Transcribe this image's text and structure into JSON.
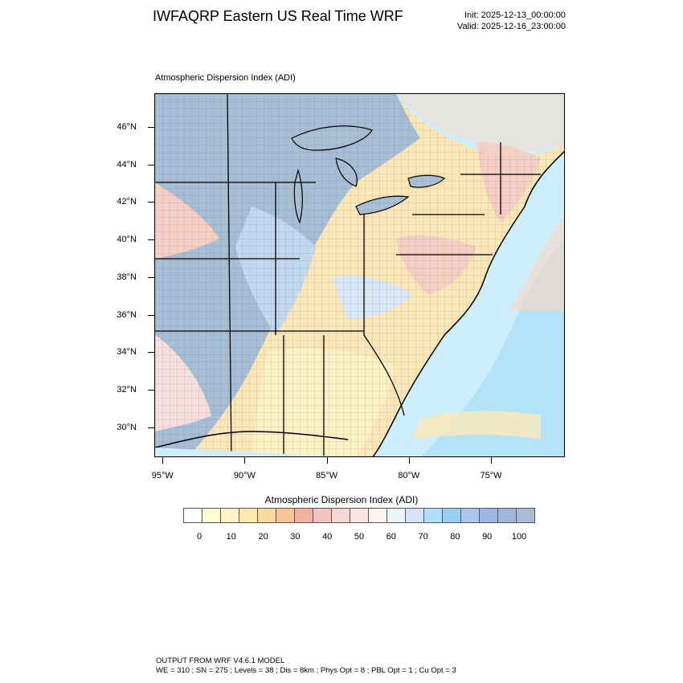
{
  "header": {
    "title": "IWFAQRP Eastern US Real Time WRF",
    "init": "Init: 2025-12-13_00:00:00",
    "valid": "Valid: 2025-12-16_23:00:00"
  },
  "plot": {
    "title": "Atmospheric Dispersion Index   (ADI)"
  },
  "map": {
    "lat_labels": [
      "46°N",
      "44°N",
      "42°N",
      "40°N",
      "38°N",
      "36°N",
      "34°N",
      "32°N",
      "30°N"
    ],
    "lat_values": [
      46,
      44,
      42,
      40,
      38,
      36,
      34,
      32,
      30
    ],
    "lon_labels": [
      "95°W",
      "90°W",
      "85°W",
      "80°W",
      "75°W"
    ],
    "lon_values": [
      -95,
      -90,
      -85,
      -80,
      -75
    ],
    "colors": {
      "lake": "#a9bfd3",
      "ocean_deep": "#aee0f7",
      "ocean_mid": "#cdeefb",
      "very_high": "#a6bed6",
      "high": "#c3d9ef",
      "mid_high": "#d8e7f5",
      "mid": "#f7dede",
      "mid_low": "#f6cfc4",
      "low": "#fbe6b7",
      "very_low": "#fdf2c5",
      "border": "#000000",
      "county": "#444444"
    }
  },
  "colorbar": {
    "title": "Atmospheric Dispersion Index  (ADI)",
    "colors": [
      "#ffffff",
      "#fffbd5",
      "#fef4c4",
      "#fde9ad",
      "#fbdb9c",
      "#f8c696",
      "#f4b09e",
      "#f3c3c1",
      "#f7d6d3",
      "#fae5e3",
      "#fdf3f2",
      "#eef2fb",
      "#d2e6f7",
      "#aee0f7",
      "#95d0f2",
      "#a8c8ef",
      "#9eb6e6",
      "#a3b6dc",
      "#a8bdd4"
    ],
    "tick_labels": [
      "0",
      "10",
      "20",
      "30",
      "40",
      "50",
      "60",
      "70",
      "80",
      "90",
      "100"
    ]
  },
  "footer": {
    "line1": "OUTPUT FROM WRF V4.6.1 MODEL",
    "line2": "WE = 310 ; SN = 275 ; Levels = 38 ; Dis = 8km ; Phys Opt = 8 ; PBL Opt = 1 ; Cu Opt = 3"
  }
}
